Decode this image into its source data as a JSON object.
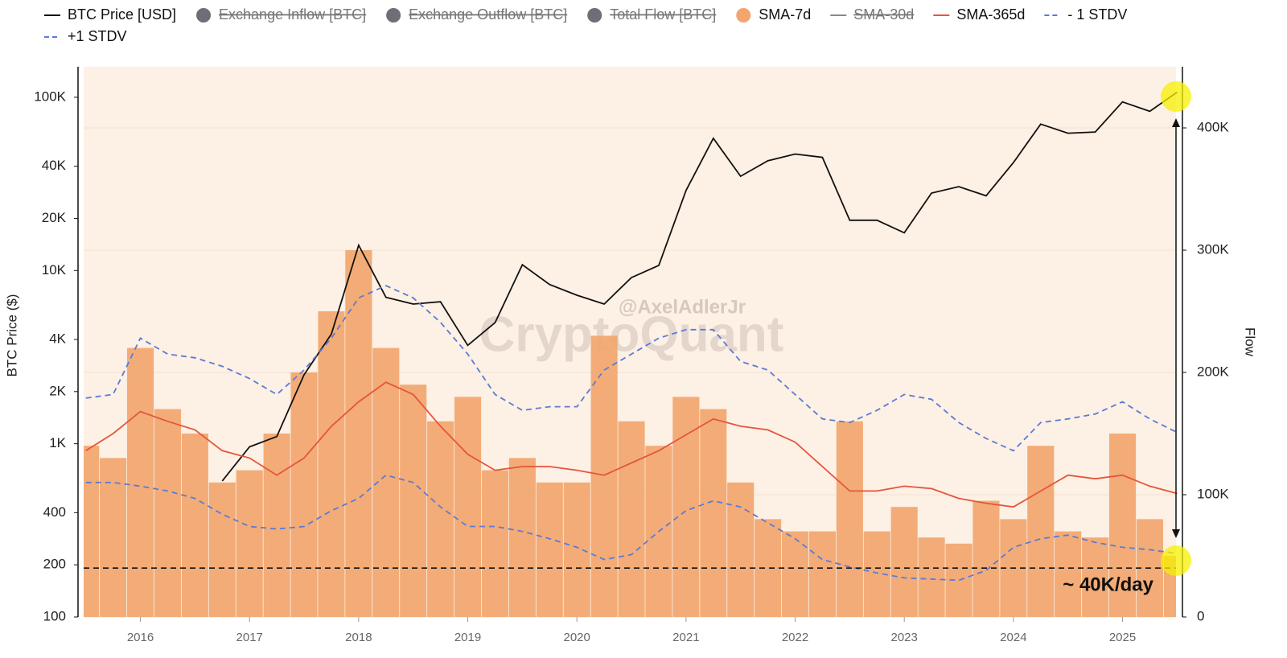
{
  "chart_data": {
    "type": "combo",
    "ylabel": "BTC Price ($)",
    "y2label": "Flow",
    "ylog": true,
    "ylim": [
      100,
      150000
    ],
    "yticks": [
      100,
      200,
      400,
      {
        "value": 1000,
        "label": "1K"
      },
      {
        "value": 2000,
        "label": "2K"
      },
      {
        "value": 4000,
        "label": "4K"
      },
      {
        "value": 10000,
        "label": "10K"
      },
      {
        "value": 20000,
        "label": "20K"
      },
      {
        "value": 40000,
        "label": "40K"
      },
      {
        "value": 100000,
        "label": "100K"
      }
    ],
    "y2lim": [
      0,
      450000
    ],
    "y2ticks": [
      0,
      {
        "value": 100000,
        "label": "100K"
      },
      {
        "value": 200000,
        "label": "200K"
      },
      {
        "value": 300000,
        "label": "300K"
      },
      {
        "value": 400000,
        "label": "400K"
      }
    ],
    "xlim": [
      2015.48,
      2025.49
    ],
    "xticks": [
      2016,
      2017,
      2018,
      2019,
      2020,
      2021,
      2022,
      2023,
      2024,
      2025
    ],
    "background": "#fdf0e4",
    "x": [
      2015.5,
      2015.75,
      2016,
      2016.25,
      2016.5,
      2016.75,
      2017,
      2017.25,
      2017.5,
      2017.75,
      2018,
      2018.25,
      2018.5,
      2018.75,
      2019,
      2019.25,
      2019.5,
      2019.75,
      2020,
      2020.25,
      2020.5,
      2020.75,
      2021,
      2021.25,
      2021.5,
      2021.75,
      2022,
      2022.25,
      2022.5,
      2022.75,
      2023,
      2023.25,
      2023.5,
      2023.75,
      2024,
      2024.25,
      2024.5,
      2024.75,
      2025,
      2025.25,
      2025.5
    ],
    "series": [
      {
        "name": "BTC Price [USD]",
        "kind": "line",
        "axis": "y",
        "color": "#111111",
        "values": [
          null,
          null,
          null,
          null,
          null,
          610,
          960,
          1100,
          2500,
          4300,
          14000,
          7000,
          6400,
          6600,
          3700,
          5000,
          10800,
          8300,
          7200,
          6400,
          9100,
          10700,
          29000,
          58000,
          35000,
          43000,
          47000,
          45000,
          19500,
          19500,
          16500,
          28000,
          30500,
          27000,
          42000,
          70000,
          62000,
          63000,
          94000,
          83000,
          107000
        ]
      },
      {
        "name": "Exchange Inflow [BTC]",
        "kind": "bar",
        "hidden": true,
        "color": "#6e6e78"
      },
      {
        "name": "Exchange Outflow [BTC]",
        "kind": "bar",
        "hidden": true,
        "color": "#6e6e78"
      },
      {
        "name": "Total Flow [BTC]",
        "kind": "bar",
        "hidden": true,
        "color": "#6e6e78"
      },
      {
        "name": "SMA-7d",
        "kind": "bar",
        "axis": "y2",
        "color": "#f2a66e",
        "values": [
          140000,
          130000,
          220000,
          170000,
          150000,
          110000,
          120000,
          150000,
          200000,
          250000,
          300000,
          220000,
          190000,
          160000,
          180000,
          120000,
          130000,
          110000,
          110000,
          230000,
          160000,
          140000,
          180000,
          170000,
          110000,
          80000,
          70000,
          70000,
          160000,
          70000,
          90000,
          65000,
          60000,
          95000,
          80000,
          140000,
          70000,
          65000,
          150000,
          80000,
          50000
        ]
      },
      {
        "name": "SMA-30d",
        "kind": "line",
        "hidden": true,
        "color": "#888888"
      },
      {
        "name": "SMA-365d",
        "kind": "line",
        "axis": "y2",
        "color": "#e5553d",
        "values": [
          136000,
          150000,
          168000,
          160000,
          153000,
          136000,
          130000,
          116000,
          130000,
          156000,
          176000,
          192000,
          182000,
          156000,
          133000,
          120000,
          123000,
          123000,
          120000,
          116000,
          126000,
          136000,
          149000,
          162000,
          156000,
          153000,
          143000,
          123000,
          103000,
          103000,
          107000,
          105000,
          97000,
          93000,
          90000,
          103000,
          116000,
          113000,
          116000,
          107000,
          101000
        ]
      },
      {
        "name": "- 1 STDV",
        "kind": "line",
        "dashed": true,
        "axis": "y2",
        "color": "#5b7bd5",
        "values": [
          110000,
          110000,
          107000,
          103000,
          97000,
          84000,
          74000,
          72000,
          74000,
          87000,
          97000,
          116000,
          110000,
          90000,
          74000,
          74000,
          70000,
          64000,
          57000,
          47000,
          51000,
          70000,
          87000,
          95000,
          90000,
          77000,
          64000,
          47000,
          41000,
          36000,
          32000,
          31000,
          30000,
          38000,
          57000,
          64000,
          67000,
          61000,
          57000,
          55000,
          52000
        ]
      },
      {
        "name": "+1 STDV",
        "kind": "line",
        "dashed": true,
        "axis": "y2",
        "color": "#5b7bd5",
        "values": [
          179000,
          182000,
          228000,
          215000,
          212000,
          205000,
          195000,
          182000,
          202000,
          228000,
          261000,
          271000,
          261000,
          241000,
          215000,
          182000,
          169000,
          172000,
          172000,
          202000,
          215000,
          228000,
          235000,
          235000,
          209000,
          202000,
          182000,
          162000,
          159000,
          169000,
          182000,
          178000,
          159000,
          146000,
          136000,
          159000,
          162000,
          166000,
          176000,
          162000,
          151000
        ]
      }
    ],
    "reference_line": {
      "text": "~ 40K/day",
      "value": 40000,
      "axis": "y2"
    },
    "watermarks": [
      "@AxelAdlerJr",
      "CryptoQuant"
    ]
  }
}
